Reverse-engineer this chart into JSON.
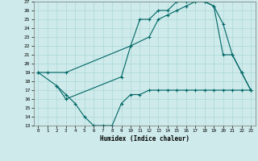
{
  "xlabel": "Humidex (Indice chaleur)",
  "bg_color": "#ceeaea",
  "grid_color": "#acd8d8",
  "line_color": "#006666",
  "xlim": [
    -0.5,
    23.5
  ],
  "ylim": [
    13,
    27
  ],
  "xticks": [
    0,
    1,
    2,
    3,
    4,
    5,
    6,
    7,
    8,
    9,
    10,
    11,
    12,
    13,
    14,
    15,
    16,
    17,
    18,
    19,
    20,
    21,
    22,
    23
  ],
  "yticks": [
    13,
    14,
    15,
    16,
    17,
    18,
    19,
    20,
    21,
    22,
    23,
    24,
    25,
    26,
    27
  ],
  "curve1_x": [
    0,
    1,
    3,
    10,
    11,
    12,
    13,
    14,
    15,
    16,
    17,
    18,
    19,
    20,
    21,
    22,
    23
  ],
  "curve1_y": [
    19,
    19,
    19,
    22,
    25,
    25,
    26,
    26,
    27,
    27,
    27,
    27,
    26.5,
    21,
    21,
    19,
    17
  ],
  "curve2_x": [
    0,
    2,
    3,
    9,
    10,
    12,
    13,
    14,
    15,
    16,
    17,
    18,
    19,
    20,
    21,
    22,
    23
  ],
  "curve2_y": [
    19,
    17.5,
    16,
    18.5,
    22,
    23,
    25,
    25.5,
    26,
    26.5,
    27,
    27,
    26.5,
    24.5,
    21,
    19,
    17
  ],
  "curve3_x": [
    2,
    3,
    4,
    5,
    6,
    7,
    8,
    9,
    10,
    11,
    12,
    13,
    14,
    15,
    16,
    17,
    18,
    19,
    20,
    21,
    22,
    23
  ],
  "curve3_y": [
    17.5,
    16.5,
    15.5,
    14,
    13,
    13,
    13,
    15.5,
    16.5,
    16.5,
    17,
    17,
    17,
    17,
    17,
    17,
    17,
    17,
    17,
    17,
    17,
    17
  ]
}
